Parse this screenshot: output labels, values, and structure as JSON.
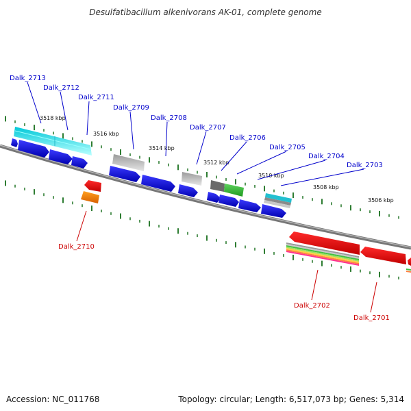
{
  "title": "Desulfatibacillum alkenivorans AK-01, complete genome",
  "footer": {
    "accession": "Accession: NC_011768",
    "topology": "Topology: circular; Length: 6,517,073 bp; Genes: 5,314"
  },
  "colors": {
    "forward_label": "#0000cc",
    "reverse_label": "#cc0000",
    "backbone": "#808080",
    "tick": "#2e7d32"
  },
  "scale_labels": [
    "3518 kbp",
    "3516 kbp",
    "3514 kbp",
    "3512 kbp",
    "3510 kbp",
    "3508 kbp",
    "3506 kbp"
  ],
  "genes_forward": [
    "Dalk_2713",
    "Dalk_2712",
    "Dalk_2711",
    "Dalk_2709",
    "Dalk_2708",
    "Dalk_2707",
    "Dalk_2706",
    "Dalk_2705",
    "Dalk_2704",
    "Dalk_2703"
  ],
  "genes_reverse": [
    "Dalk_2710",
    "Dalk_2702",
    "Dalk_2701"
  ]
}
